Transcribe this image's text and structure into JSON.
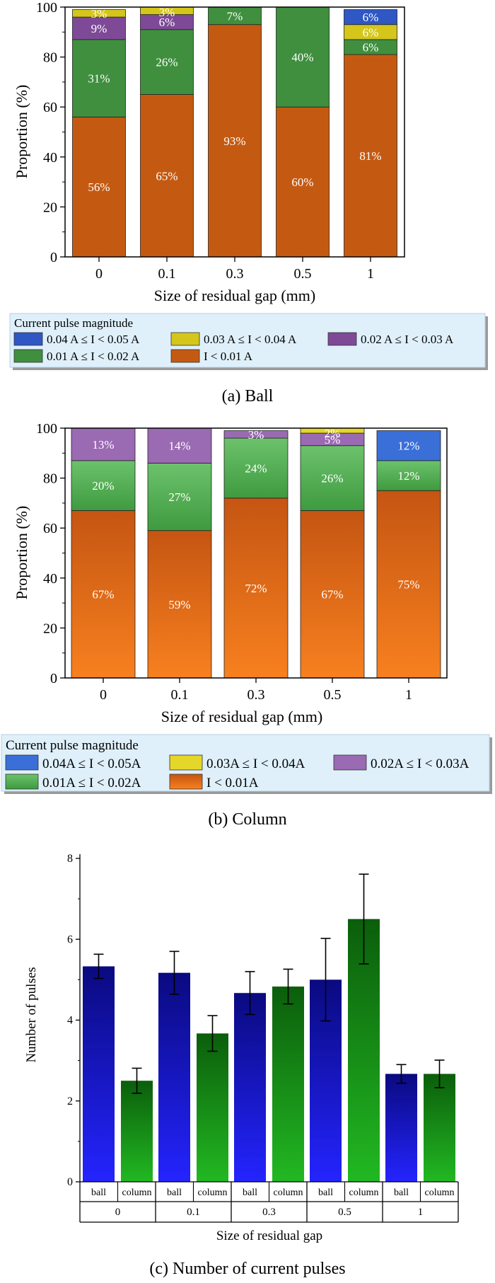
{
  "chart_data": [
    {
      "type": "bar",
      "stacked": true,
      "caption": "(a)  Ball",
      "xlabel": "Size of residual gap (mm)",
      "ylabel": "Proportion (%)",
      "ylim": [
        0,
        100
      ],
      "yticks": [
        0,
        20,
        40,
        60,
        80,
        100
      ],
      "categories": [
        "0",
        "0.1",
        "0.3",
        "0.5",
        "1"
      ],
      "legend_title": "Current pulse magnitude",
      "legend_placement": "bottom",
      "series": [
        {
          "name": "I < 0.01 A",
          "color": "#c45a12",
          "values": [
            56,
            65,
            93,
            60,
            81
          ],
          "labels": [
            "56%",
            "65%",
            "93%",
            "60%",
            "81%"
          ]
        },
        {
          "name": "0.01 A ≤ I < 0.02 A",
          "color": "#3f8f3f",
          "values": [
            31,
            26,
            7,
            40,
            6
          ],
          "labels": [
            "31%",
            "26%",
            "7%",
            "40%",
            "6%"
          ]
        },
        {
          "name": "0.02 A ≤ I < 0.03 A",
          "color": "#7e4a97",
          "values": [
            9,
            6,
            0,
            0,
            0
          ],
          "labels": [
            "9%",
            "6%",
            "",
            "",
            ""
          ]
        },
        {
          "name": "0.03 A ≤ I < 0.04 A",
          "color": "#d4c61a",
          "values": [
            3,
            3,
            0,
            0,
            6
          ],
          "labels": [
            "3%",
            "3%",
            "",
            "",
            "6%"
          ]
        },
        {
          "name": "0.04 A ≤ I < 0.05 A",
          "color": "#2f58c4",
          "values": [
            0,
            0,
            0,
            0,
            6
          ],
          "labels": [
            "",
            "",
            "",
            "",
            "6%"
          ]
        }
      ]
    },
    {
      "type": "bar",
      "stacked": true,
      "caption": "(b)  Column",
      "xlabel": "Size of residual gap (mm)",
      "ylabel": "Proportion (%)",
      "ylim": [
        0,
        100
      ],
      "yticks": [
        0,
        20,
        40,
        60,
        80,
        100
      ],
      "categories": [
        "0",
        "0.1",
        "0.3",
        "0.5",
        "1"
      ],
      "legend_title": "Current pulse magnitude",
      "legend_placement": "bottom",
      "series": [
        {
          "name": "I < 0.01A",
          "color": "#f07a26",
          "values": [
            67,
            59,
            72,
            67,
            75
          ],
          "labels": [
            "67%",
            "59%",
            "72%",
            "67%",
            "75%"
          ]
        },
        {
          "name": "0.01A ≤ I < 0.02A",
          "color": "#4fae4f",
          "values": [
            20,
            27,
            24,
            26,
            12
          ],
          "labels": [
            "20%",
            "27%",
            "24%",
            "26%",
            "12%"
          ]
        },
        {
          "name": "0.02A ≤ I < 0.03A",
          "color": "#9a6ab3",
          "values": [
            13,
            14,
            3,
            5,
            0
          ],
          "labels": [
            "13%",
            "14%",
            "3%",
            "5%",
            ""
          ]
        },
        {
          "name": "0.03A ≤ I < 0.04A",
          "color": "#e5d62a",
          "values": [
            0,
            0,
            0,
            2,
            0
          ],
          "labels": [
            "",
            "",
            "",
            "2%",
            ""
          ]
        },
        {
          "name": "0.04A ≤ I < 0.05A",
          "color": "#3a6fd8",
          "values": [
            0,
            0,
            0,
            0,
            12
          ],
          "labels": [
            "",
            "",
            "",
            "",
            "12%"
          ]
        }
      ]
    },
    {
      "type": "bar",
      "caption": "(c)  Number of current pulses",
      "xlabel": "Size of residual gap",
      "ylabel": "Number of pulses",
      "ylim": [
        0,
        8
      ],
      "yticks": [
        0,
        2,
        4,
        6,
        8
      ],
      "categories": [
        "0",
        "0.1",
        "0.3",
        "0.5",
        "1"
      ],
      "sub_categories": [
        "ball",
        "column"
      ],
      "series": [
        {
          "name": "ball",
          "color": "#1a1ad6",
          "values": [
            5.33,
            5.17,
            4.67,
            5.0,
            2.67
          ],
          "errors": [
            0.3,
            0.53,
            0.53,
            1.02,
            0.23
          ]
        },
        {
          "name": "column",
          "color": "#1fa01f",
          "values": [
            2.5,
            3.67,
            4.83,
            6.5,
            2.67
          ],
          "errors": [
            0.31,
            0.44,
            0.43,
            1.11,
            0.34
          ]
        }
      ]
    }
  ]
}
